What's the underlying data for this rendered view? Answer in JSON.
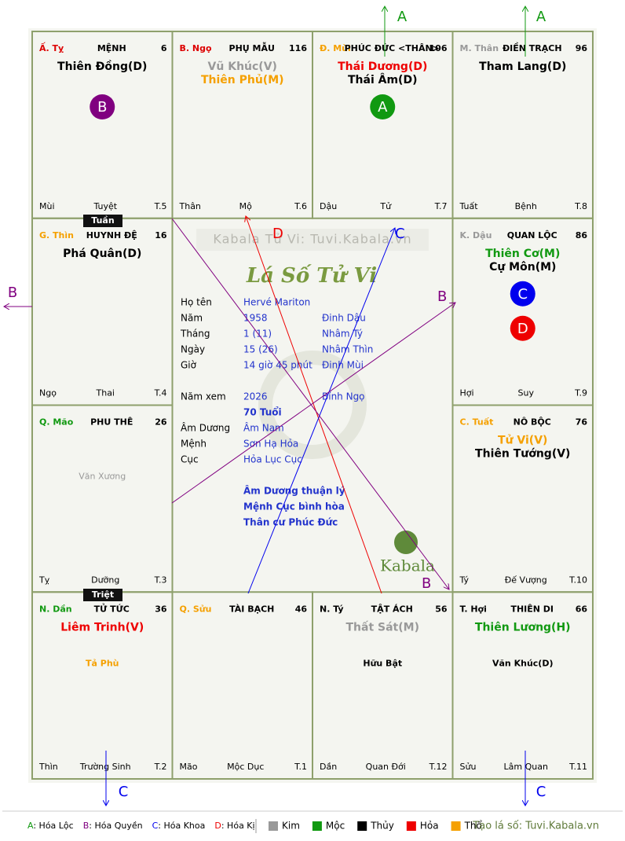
{
  "palaces": [
    {
      "stem": "Ấ. Tỵ",
      "stem_color": "#d00",
      "name": "MỆNH",
      "number": 6,
      "stars": [
        {
          "text": "Thiên Đồng(D)",
          "color": "#000"
        }
      ],
      "minor": [],
      "markers": [
        {
          "letter": "B",
          "color": "#800080"
        }
      ],
      "footer": [
        "Mùi",
        "Tuyệt",
        "T.5"
      ]
    },
    {
      "stem": "B. Ngọ",
      "stem_color": "#d00",
      "name": "PHỤ MẪU",
      "number": 116,
      "stars": [
        {
          "text": "Vũ Khúc(V)",
          "color": "#999"
        },
        {
          "text": "Thiên Phủ(M)",
          "color": "#f5a000"
        }
      ],
      "minor": [],
      "markers": [],
      "footer": [
        "Thân",
        "Mộ",
        "T.6"
      ]
    },
    {
      "stem": "Đ. Mùi",
      "stem_color": "#f5a000",
      "name": "PHÚC ĐỨC <THÂN>",
      "number": 106,
      "stars": [
        {
          "text": "Thái Dương(D)",
          "color": "#e00"
        },
        {
          "text": "Thái Âm(D)",
          "color": "#000"
        }
      ],
      "minor": [],
      "markers": [
        {
          "letter": "A",
          "color": "#119911"
        }
      ],
      "footer": [
        "Dậu",
        "Tử",
        "T.7"
      ]
    },
    {
      "stem": "M. Thân",
      "stem_color": "#999",
      "name": "ĐIỀN TRẠCH",
      "number": 96,
      "stars": [
        {
          "text": "Tham Lang(D)",
          "color": "#000"
        }
      ],
      "minor": [],
      "markers": [],
      "footer": [
        "Tuất",
        "Bệnh",
        "T.8"
      ]
    },
    {
      "stem": "G. Thìn",
      "stem_color": "#f5a000",
      "name": "HUYNH ĐỆ",
      "number": 16,
      "stars": [
        {
          "text": "Phá Quân(D)",
          "color": "#000"
        }
      ],
      "minor": [],
      "markers": [],
      "footer": [
        "Ngọ",
        "Thai",
        "T.4"
      ]
    },
    {
      "stem": "K. Dậu",
      "stem_color": "#999",
      "name": "QUAN LỘC",
      "number": 86,
      "stars": [
        {
          "text": "Thiên Cơ(M)",
          "color": "#119911"
        },
        {
          "text": "Cự Môn(M)",
          "color": "#000"
        }
      ],
      "minor": [],
      "markers": [
        {
          "letter": "C",
          "color": "#0000ee"
        },
        {
          "letter": "D",
          "color": "#ee0000"
        }
      ],
      "footer": [
        "Hợi",
        "Suy",
        "T.9"
      ]
    },
    {
      "stem": "Q. Mão",
      "stem_color": "#119911",
      "name": "PHU THÊ",
      "number": 26,
      "stars": [],
      "minor": [
        {
          "text": "Văn Xương",
          "color": "#999"
        }
      ],
      "markers": [],
      "footer": [
        "Tỵ",
        "Dưỡng",
        "T.3"
      ]
    },
    {
      "stem": "C. Tuất",
      "stem_color": "#f5a000",
      "name": "NÔ BỘC",
      "number": 76,
      "stars": [
        {
          "text": "Tử Vi(V)",
          "color": "#f5a000"
        },
        {
          "text": "Thiên Tướng(V)",
          "color": "#000"
        }
      ],
      "minor": [],
      "markers": [],
      "footer": [
        "Tý",
        "Đế Vượng",
        "T.10"
      ]
    },
    {
      "stem": "N. Dần",
      "stem_color": "#119911",
      "name": "TỬ TỨC",
      "number": 36,
      "stars": [
        {
          "text": "Liêm Trinh(V)",
          "color": "#e00"
        }
      ],
      "minor": [
        {
          "text": "Tả Phù",
          "color": "#f5a000"
        }
      ],
      "markers": [],
      "footer": [
        "Thìn",
        "Trường Sinh",
        "T.2"
      ]
    },
    {
      "stem": "Q. Sửu",
      "stem_color": "#f5a000",
      "name": "TÀI BẠCH",
      "number": 46,
      "stars": [],
      "minor": [],
      "markers": [],
      "footer": [
        "Mão",
        "Mộc Dục",
        "T.1"
      ]
    },
    {
      "stem": "N. Tý",
      "stem_color": "#000",
      "name": "TẬT ÁCH",
      "number": 56,
      "stars": [
        {
          "text": "Thất Sát(M)",
          "color": "#999"
        }
      ],
      "minor": [
        {
          "text": "Hữu Bật",
          "color": "#000"
        }
      ],
      "markers": [],
      "footer": [
        "Dần",
        "Quan Đới",
        "T.12"
      ]
    },
    {
      "stem": "T. Hợi",
      "stem_color": "#000",
      "name": "THIÊN DI",
      "number": 66,
      "stars": [
        {
          "text": "Thiên Lương(H)",
          "color": "#119911"
        }
      ],
      "minor": [
        {
          "text": "Văn Khúc(D)",
          "color": "#000"
        }
      ],
      "markers": [],
      "footer": [
        "Sửu",
        "Lâm Quan",
        "T.11"
      ]
    }
  ],
  "tags": [
    "Tuần",
    "Triệt"
  ],
  "center": {
    "watermark": "Kabala Tử Vi: Tuvi.Kabala.vn",
    "title": "Lá Số Tử Vi",
    "rows": [
      [
        "Họ tên",
        "Hervé Mariton"
      ],
      [
        "Năm",
        "1958",
        "Đinh Dậu"
      ],
      [
        "Tháng",
        "1  (11)",
        "Nhâm Tý"
      ],
      [
        "Ngày",
        "15  (26)",
        "Nhâm Thìn"
      ],
      [
        "Giờ",
        "14 giờ 45 phút",
        "Đinh Mùi"
      ],
      [
        "Năm xem",
        "2026",
        "Bính Ngọ"
      ],
      [
        null,
        "70 Tuổi"
      ],
      [
        "Âm Dương",
        "Âm Nam"
      ],
      [
        "Mệnh",
        "Sơn Hạ Hỏa"
      ],
      [
        "Cục",
        "Hỏa Lục Cục"
      ]
    ],
    "notes": [
      "Âm Dương thuận lý",
      "Mệnh Cục bình hòa",
      "Thân cư Phúc Đức"
    ],
    "logo": "Kabala"
  },
  "arrows": [
    {
      "label": "A",
      "color": "#119911"
    },
    {
      "label": "A",
      "color": "#119911"
    },
    {
      "label": "B",
      "color": "#800080"
    },
    {
      "label": "C",
      "color": "#0000ee"
    },
    {
      "label": "C",
      "color": "#0000ee"
    }
  ],
  "lines": [
    {
      "label": "D",
      "color": "#ee0000"
    },
    {
      "label": "C",
      "color": "#0000ee"
    },
    {
      "label": "B",
      "color": "#800080"
    },
    {
      "label": "B",
      "color": "#800080"
    }
  ],
  "legend": {
    "transforms": [
      {
        "key": "A",
        "text": ": Hóa Lộc",
        "color": "#119911"
      },
      {
        "key": "B",
        "text": ": Hóa Quyền",
        "color": "#800080"
      },
      {
        "key": "C",
        "text": ": Hóa Khoa",
        "color": "#0000ee"
      },
      {
        "key": "D",
        "text": ": Hóa Kị",
        "color": "#ee0000"
      }
    ],
    "elements": [
      {
        "text": "Kim",
        "color": "#999"
      },
      {
        "text": "Mộc",
        "color": "#119911"
      },
      {
        "text": "Thủy",
        "color": "#000"
      },
      {
        "text": "Hỏa",
        "color": "#ee0000"
      },
      {
        "text": "Thổ",
        "color": "#f5a000"
      }
    ],
    "credit": "Tạo lá số: Tuvi.Kabala.vn"
  }
}
